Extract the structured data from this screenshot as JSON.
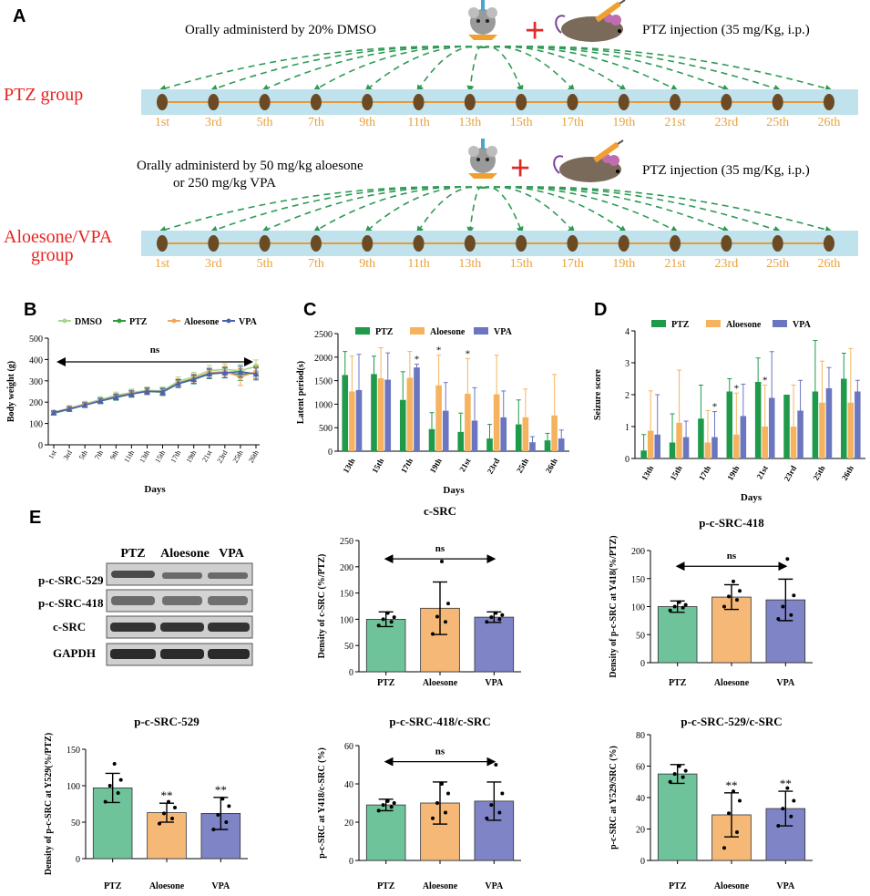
{
  "panel_labels": {
    "a": "A",
    "b": "B",
    "c": "C",
    "d": "D",
    "e": "E"
  },
  "schema": {
    "pre_day_label": "1st",
    "day_labels": [
      "1st",
      "3rd",
      "5th",
      "7th",
      "9th",
      "11th",
      "13th",
      "15th",
      "17th",
      "19th",
      "21st",
      "23rd",
      "25th",
      "26th"
    ],
    "top": {
      "oral_text": "Orally administerd by 20% DMSO",
      "pzt_text": "PTZ injection (35 mg/Kg, i.p.)",
      "group_label": "PTZ group"
    },
    "bottom": {
      "oral_line1": "Orally administerd by 50 mg/kg aloesone",
      "oral_line2": "or 250 mg/kg VPA",
      "pzt_text": "PTZ injection (35 mg/Kg, i.p.)",
      "group_line1": "Aloesone/VPA",
      "group_line2": "group"
    },
    "plus_sign": "+",
    "colors": {
      "group_text": "#e8231f",
      "band": "#bfe2ec",
      "line": "#e89a3a",
      "day_text": "#e8a13a",
      "dot": "#6b4a24",
      "arrow": "#2e9a55",
      "plus": "#e02b2b"
    }
  },
  "chart_data": [
    {
      "id": "B",
      "type": "line",
      "title": "",
      "xlabel": "Days",
      "ylabel": "Body weight (g)",
      "ylim": [
        0,
        500
      ],
      "yticks": [
        0,
        100,
        200,
        300,
        400,
        500
      ],
      "categories": [
        "1st",
        "3rd",
        "5th",
        "7th",
        "9th",
        "11th",
        "13th",
        "15th",
        "17th",
        "19th",
        "21st",
        "23rd",
        "25th",
        "26th"
      ],
      "annotation": "ns",
      "series": [
        {
          "name": "DMSO",
          "color": "#a8d58e",
          "values": [
            152,
            172,
            192,
            212,
            232,
            245,
            255,
            253,
            298,
            318,
            348,
            354,
            347,
            368
          ],
          "errors": [
            10,
            12,
            12,
            14,
            15,
            16,
            16,
            18,
            20,
            22,
            24,
            26,
            30,
            30
          ]
        },
        {
          "name": "PTZ",
          "color": "#2e9a3e",
          "values": [
            148,
            167,
            186,
            205,
            222,
            238,
            250,
            247,
            286,
            306,
            332,
            338,
            330,
            338
          ],
          "errors": [
            8,
            10,
            11,
            12,
            13,
            15,
            15,
            16,
            18,
            20,
            22,
            24,
            28,
            28
          ]
        },
        {
          "name": "Aloesone",
          "color": "#f4a55c",
          "values": [
            150,
            170,
            188,
            207,
            226,
            241,
            252,
            249,
            290,
            311,
            338,
            343,
            318,
            342
          ],
          "errors": [
            9,
            11,
            11,
            13,
            14,
            15,
            16,
            17,
            19,
            21,
            23,
            25,
            40,
            30
          ]
        },
        {
          "name": "VPA",
          "color": "#4b62ad",
          "values": [
            151,
            168,
            186,
            206,
            224,
            239,
            251,
            249,
            288,
            308,
            334,
            338,
            343,
            332
          ],
          "errors": [
            8,
            10,
            11,
            12,
            13,
            14,
            15,
            16,
            18,
            20,
            22,
            24,
            26,
            28
          ]
        }
      ]
    },
    {
      "id": "C",
      "type": "bar",
      "title": "",
      "xlabel": "Days",
      "ylabel": "Latent period(s)",
      "ylim": [
        0,
        2500
      ],
      "yticks": [
        0,
        500,
        1000,
        1500,
        2000,
        2500
      ],
      "categories": [
        "13th",
        "15th",
        "17th",
        "19th",
        "21st",
        "23rd",
        "25th",
        "26th"
      ],
      "series": [
        {
          "name": "PTZ",
          "color": "#1f9a4a",
          "values": [
            1620,
            1640,
            1090,
            470,
            410,
            270,
            570,
            230
          ],
          "errors": [
            500,
            380,
            600,
            350,
            400,
            300,
            520,
            150
          ]
        },
        {
          "name": "Aloesone",
          "color": "#f5b35f",
          "values": [
            1270,
            1550,
            1560,
            1400,
            1220,
            1210,
            720,
            760
          ],
          "errors": [
            750,
            650,
            560,
            640,
            750,
            830,
            600,
            870
          ]
        },
        {
          "name": "VPA",
          "color": "#6b76c1",
          "values": [
            1300,
            1520,
            1780,
            860,
            650,
            720,
            190,
            270
          ],
          "errors": [
            760,
            570,
            70,
            600,
            700,
            560,
            120,
            180
          ]
        }
      ],
      "stars": [
        {
          "category": "17th",
          "series": "VPA",
          "label": "*"
        },
        {
          "category": "19th",
          "series": "Aloesone",
          "label": "*"
        },
        {
          "category": "21st",
          "series": "Aloesone",
          "label": "*"
        }
      ]
    },
    {
      "id": "D",
      "type": "bar",
      "title": "",
      "xlabel": "Days",
      "ylabel": "Seizure score",
      "ylim": [
        0,
        4
      ],
      "yticks": [
        0,
        1,
        2,
        3,
        4
      ],
      "categories": [
        "13th",
        "15th",
        "17th",
        "19th",
        "21st",
        "23rd",
        "25th",
        "26th"
      ],
      "series": [
        {
          "name": "PTZ",
          "color": "#1f9a4a",
          "values": [
            0.25,
            0.5,
            1.25,
            2.1,
            2.4,
            2.0,
            2.1,
            2.5
          ],
          "errors": [
            0.5,
            0.9,
            1.05,
            0.4,
            0.75,
            0,
            1.6,
            0.8
          ]
        },
        {
          "name": "Aloesone",
          "color": "#f5b35f",
          "values": [
            0.87,
            1.12,
            0.5,
            0.75,
            1.0,
            1.0,
            1.75,
            1.75
          ],
          "errors": [
            1.25,
            1.65,
            1.0,
            1.3,
            1.3,
            1.3,
            1.3,
            1.7
          ]
        },
        {
          "name": "VPA",
          "color": "#6b76c1",
          "values": [
            0.75,
            0.67,
            0.67,
            1.33,
            1.9,
            1.5,
            2.2,
            2.1
          ],
          "errors": [
            1.25,
            0.5,
            0.8,
            1.0,
            1.45,
            0.95,
            0.65,
            0.35
          ]
        }
      ],
      "stars": [
        {
          "category": "17th",
          "series": "VPA",
          "label": "*"
        },
        {
          "category": "19th",
          "series": "Aloesone",
          "label": "*"
        },
        {
          "category": "21st",
          "series": "Aloesone",
          "label": "*"
        }
      ]
    },
    {
      "id": "E-c-SRC",
      "type": "bar",
      "title": "c-SRC",
      "xlabel": "",
      "ylabel": "Density of c-SRC (%/PTZ)",
      "ylim": [
        0,
        250
      ],
      "yticks": [
        0,
        50,
        100,
        150,
        200,
        250
      ],
      "categories": [
        "PTZ",
        "Aloesone",
        "VPA"
      ],
      "colors": [
        "#6fc39a",
        "#f5b877",
        "#7e84c6"
      ],
      "values": [
        100,
        121,
        104
      ],
      "errors": [
        14,
        50,
        10
      ],
      "points": [
        [
          88,
          95,
          100,
          104,
          112
        ],
        [
          72,
          95,
          105,
          130,
          210
        ],
        [
          95,
          100,
          104,
          108,
          112
        ]
      ],
      "annotation": "ns",
      "stars": [
        "",
        "",
        ""
      ]
    },
    {
      "id": "E-p-c-SRC-418",
      "type": "bar",
      "title": "p-c-SRC-418",
      "xlabel": "",
      "ylabel": "Density of p-c-SRC at Y418(%/PTZ)",
      "ylim": [
        0,
        200
      ],
      "yticks": [
        0,
        50,
        100,
        150,
        200
      ],
      "categories": [
        "PTZ",
        "Aloesone",
        "VPA"
      ],
      "colors": [
        "#6fc39a",
        "#f5b877",
        "#7e84c6"
      ],
      "values": [
        100,
        117,
        112
      ],
      "errors": [
        10,
        22,
        37
      ],
      "points": [
        [
          93,
          98,
          100,
          103,
          108
        ],
        [
          100,
          112,
          118,
          128,
          145
        ],
        [
          78,
          85,
          100,
          120,
          185
        ]
      ],
      "annotation": "ns",
      "stars": [
        "",
        "",
        ""
      ]
    },
    {
      "id": "E-p-c-SRC-529",
      "type": "bar",
      "title": "p-c-SRC-529",
      "xlabel": "",
      "ylabel": "Density of p-c-SRC at Y529(%/PTZ)",
      "ylim": [
        0,
        150
      ],
      "yticks": [
        0,
        50,
        100,
        150
      ],
      "categories": [
        "PTZ",
        "Aloesone",
        "VPA"
      ],
      "colors": [
        "#6fc39a",
        "#f5b877",
        "#7e84c6"
      ],
      "values": [
        97,
        63,
        62
      ],
      "errors": [
        20,
        13,
        22
      ],
      "points": [
        [
          78,
          90,
          100,
          108,
          130
        ],
        [
          48,
          55,
          62,
          70,
          78
        ],
        [
          40,
          50,
          60,
          72,
          82
        ]
      ],
      "annotation": "",
      "stars": [
        "",
        "**",
        "**"
      ]
    },
    {
      "id": "E-p-c-SRC-418/c-SRC",
      "type": "bar",
      "title": "p-c-SRC-418/c-SRC",
      "xlabel": "",
      "ylabel": "p-c-SRC at Y418/c-SRC (%)",
      "ylim": [
        0,
        60
      ],
      "yticks": [
        0,
        20,
        40,
        60
      ],
      "categories": [
        "PTZ",
        "Aloesone",
        "VPA"
      ],
      "colors": [
        "#6fc39a",
        "#f5b877",
        "#7e84c6"
      ],
      "values": [
        29,
        30,
        31
      ],
      "errors": [
        3,
        11,
        10
      ],
      "points": [
        [
          26,
          28,
          29,
          30,
          31
        ],
        [
          22,
          25,
          30,
          35,
          40
        ],
        [
          22,
          25,
          29,
          35,
          50
        ]
      ],
      "annotation": "ns",
      "stars": [
        "",
        "",
        ""
      ]
    },
    {
      "id": "E-p-c-SRC-529/c-SRC",
      "type": "bar",
      "title": "p-c-SRC-529/c-SRC",
      "xlabel": "",
      "ylabel": "p-c-SRC at Y529/SRC (%)",
      "ylim": [
        0,
        80
      ],
      "yticks": [
        0,
        20,
        40,
        60,
        80
      ],
      "categories": [
        "PTZ",
        "Aloesone",
        "VPA"
      ],
      "colors": [
        "#6fc39a",
        "#f5b877",
        "#7e84c6"
      ],
      "values": [
        55,
        29,
        33
      ],
      "errors": [
        6,
        14,
        11
      ],
      "points": [
        [
          50,
          53,
          55,
          57,
          60
        ],
        [
          8,
          18,
          30,
          38,
          44
        ],
        [
          22,
          28,
          33,
          38,
          46
        ]
      ],
      "annotation": "",
      "stars": [
        "",
        "**",
        "**"
      ]
    }
  ],
  "western_blot": {
    "columns": [
      "PTZ",
      "Aloesone",
      "VPA"
    ],
    "rows": [
      "p-c-SRC-529",
      "p-c-SRC-418",
      "c-SRC",
      "GAPDH"
    ]
  }
}
